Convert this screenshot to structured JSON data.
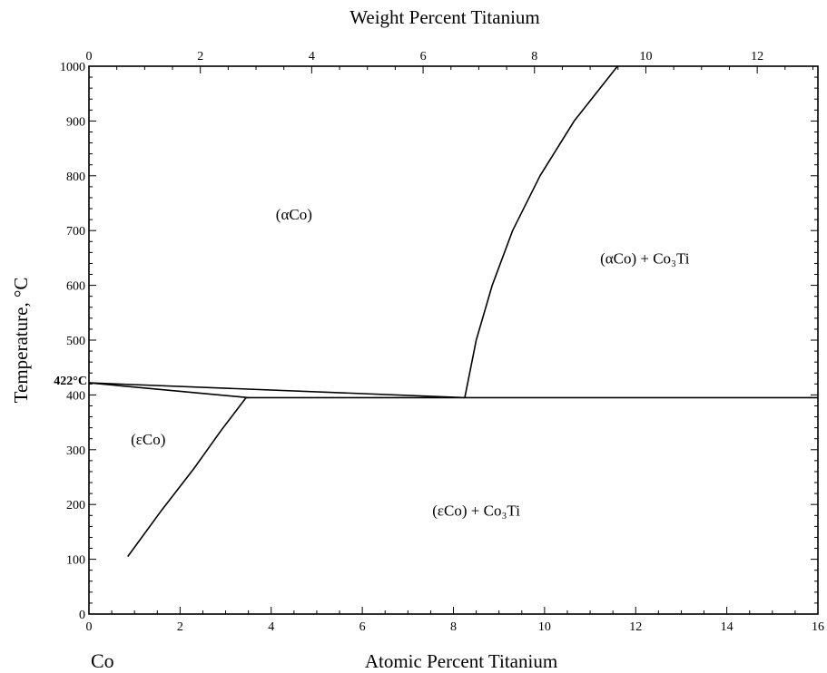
{
  "chart_data": {
    "type": "line",
    "title": "",
    "top_axis": {
      "label": "Weight Percent Titanium",
      "range": [
        0,
        13.09
      ],
      "major_ticks": [
        0,
        2,
        4,
        6,
        8,
        10,
        12
      ],
      "tick_labels": [
        "0",
        "2",
        "4",
        "6",
        "8",
        "10",
        "12"
      ]
    },
    "x_axis": {
      "label": "Atomic Percent Titanium",
      "range": [
        0,
        16
      ],
      "major_ticks": [
        0,
        2,
        4,
        6,
        8,
        10,
        12,
        14,
        16
      ],
      "tick_labels": [
        "0",
        "2",
        "4",
        "6",
        "8",
        "10",
        "12",
        "14",
        "16"
      ]
    },
    "y_axis": {
      "label": "Temperature, °C",
      "range": [
        0,
        1000
      ],
      "major_ticks": [
        0,
        100,
        200,
        300,
        400,
        500,
        600,
        700,
        800,
        900,
        1000
      ],
      "tick_labels": [
        "0",
        "100",
        "200",
        "300",
        "400",
        "500",
        "600",
        "700",
        "800",
        "900",
        "1000"
      ]
    },
    "grid": false,
    "element_label": "Co",
    "annotations": [
      {
        "text": "422°C",
        "x": 0,
        "y": 422
      }
    ],
    "regions": [
      {
        "text": "(αCo)",
        "x": 4.5,
        "y": 720
      },
      {
        "text": "(αCo) + Co₃Ti",
        "x": 12.2,
        "y": 640
      },
      {
        "text": "(εCo)",
        "x": 1.3,
        "y": 310
      },
      {
        "text": "(εCo) + Co₃Ti",
        "x": 8.5,
        "y": 180
      }
    ],
    "series": [
      {
        "points": [
          [
            0,
            422
          ],
          [
            8.25,
            395
          ]
        ]
      },
      {
        "points": [
          [
            0,
            422
          ],
          [
            3.5,
            395
          ]
        ]
      },
      {
        "points": [
          [
            3.45,
            395
          ],
          [
            16,
            395
          ]
        ]
      },
      {
        "points": [
          [
            3.45,
            395
          ],
          [
            2.9,
            335
          ],
          [
            2.3,
            265
          ],
          [
            1.6,
            190
          ],
          [
            0.85,
            105
          ]
        ]
      },
      {
        "points": [
          [
            8.25,
            395
          ],
          [
            8.5,
            500
          ],
          [
            8.85,
            600
          ],
          [
            9.3,
            700
          ],
          [
            9.9,
            800
          ],
          [
            10.65,
            900
          ],
          [
            11.6,
            1000
          ]
        ]
      }
    ]
  }
}
